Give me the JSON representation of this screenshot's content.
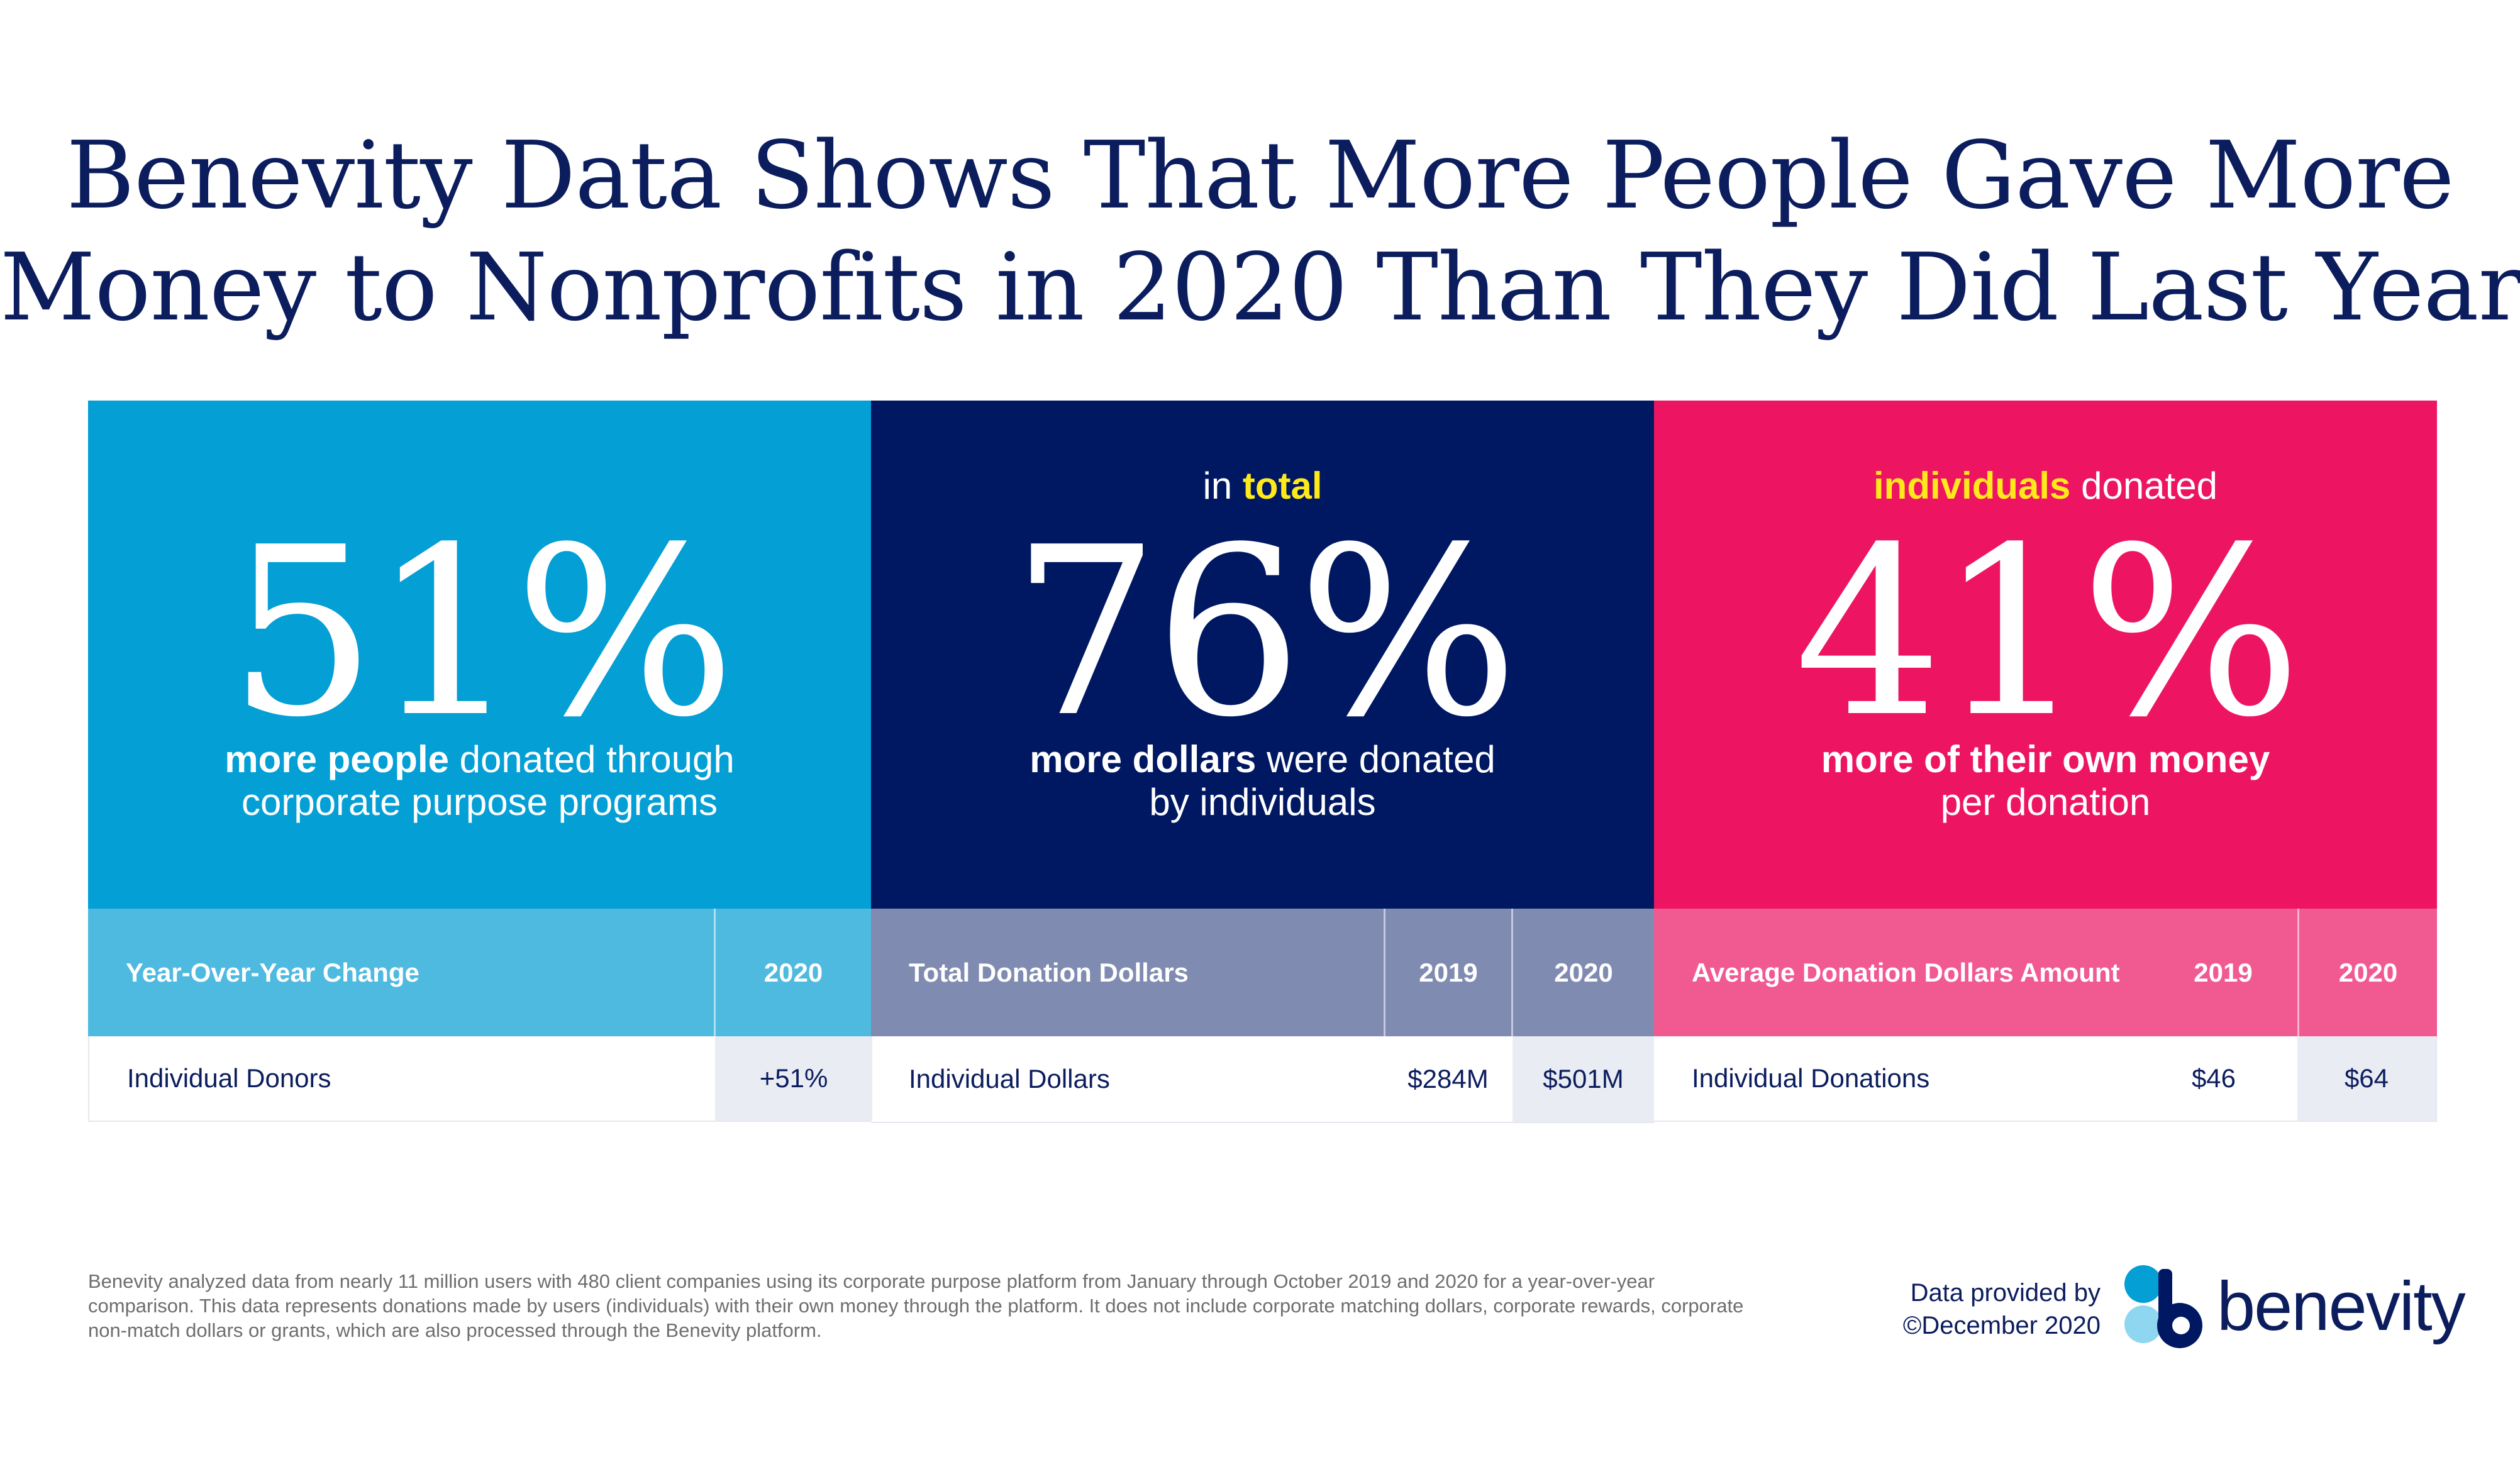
{
  "title": {
    "line1": "Benevity Data Shows That More People Gave More",
    "line2": "Money to Nonprofits in 2020 Than They Did Last Year"
  },
  "colors": {
    "navy": "#0c1d5e",
    "blue": "#039fd5",
    "dark_navy": "#001862",
    "pink": "#ed1561",
    "yellow": "#ffe91b"
  },
  "panels": [
    {
      "lead_pre": "",
      "lead_highlight": "",
      "lead_post": "",
      "value": "51%",
      "desc_bold": "more people",
      "desc_rest": " donated through",
      "desc_line2": "corporate purpose programs"
    },
    {
      "lead_pre": "in ",
      "lead_highlight": "total",
      "lead_post": "",
      "value": "76%",
      "desc_bold": "more dollars",
      "desc_rest": " were donated",
      "desc_line2": "by individuals"
    },
    {
      "lead_pre": "",
      "lead_highlight": "individuals",
      "lead_post": " donated",
      "value": "41%",
      "desc_bold": "more of their own money",
      "desc_rest": "",
      "desc_line2": "per donation"
    }
  ],
  "tables": [
    {
      "header": "Year-Over-Year Change",
      "cols": [
        "2020"
      ],
      "row_label": "Individual Donors",
      "values": [
        "+51%"
      ]
    },
    {
      "header": "Total Donation Dollars",
      "cols": [
        "2019",
        "2020"
      ],
      "row_label": "Individual Dollars",
      "values": [
        "$284M",
        "$501M"
      ]
    },
    {
      "header": "Average Donation Dollars Amount",
      "cols": [
        "2019",
        "2020"
      ],
      "row_label": "Individual Donations",
      "values": [
        "$46",
        "$64"
      ]
    }
  ],
  "footnote": "Benevity analyzed data from nearly 11 million users with 480 client companies using its corporate purpose platform from January through October 2019 and 2020 for a year-over-year comparison. This data represents donations made by users (individuals) with their own money through the platform. It does not include corporate matching dollars, corporate rewards, corporate non-match dollars or grants, which are also processed through the Benevity platform.",
  "credit": {
    "line1": "Data provided by",
    "line2": "©December 2020"
  },
  "logo": {
    "wordmark": "benevity"
  },
  "chart_data": {
    "type": "table",
    "title": "Benevity Data Shows That More People Gave More Money to Nonprofits in 2020 Than They Did Last Year",
    "metrics": [
      {
        "name": "Individual Donors",
        "change_pct": 51,
        "label": "Year-Over-Year Change",
        "values": {
          "2020": "+51%"
        }
      },
      {
        "name": "Individual Dollars",
        "change_pct": 76,
        "label": "Total Donation Dollars",
        "values": {
          "2019": 284,
          "2020": 501
        },
        "unit": "$M"
      },
      {
        "name": "Individual Donations",
        "change_pct": 41,
        "label": "Average Donation Dollars Amount",
        "values": {
          "2019": 46,
          "2020": 64
        },
        "unit": "$"
      }
    ]
  }
}
